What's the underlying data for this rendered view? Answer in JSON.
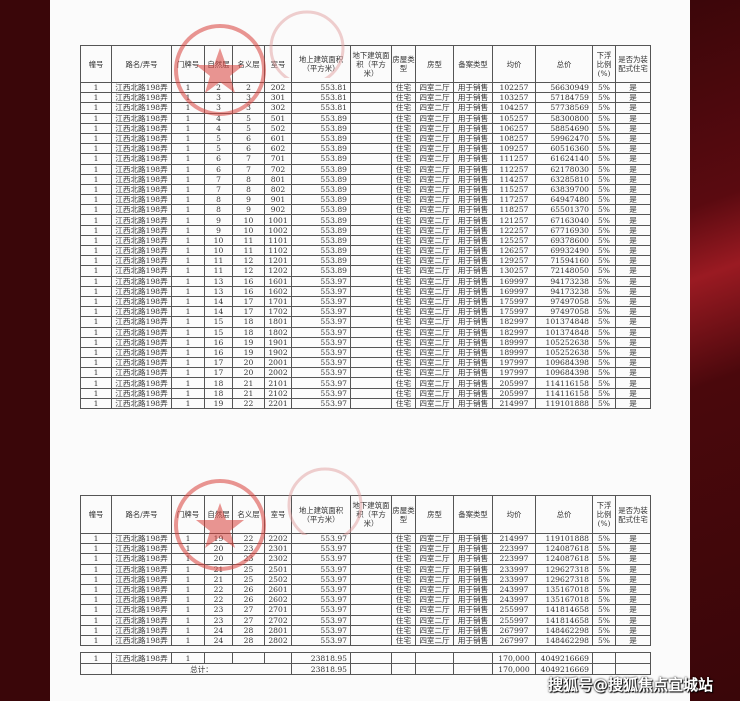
{
  "headers": [
    "幢号",
    "路名/弄号",
    "门牌号",
    "自然层",
    "名义层",
    "室号",
    "地上建筑面积（平方米）",
    "地下建筑面积（平方米）",
    "房屋类型",
    "房型",
    "备案类型",
    "均价",
    "总价",
    "下浮比例(%)",
    "是否为装配式住宅"
  ],
  "table1_rows": [
    [
      "1",
      "江西北路198弄",
      "1",
      "2",
      "2",
      "202",
      "553.81",
      "",
      "住宅",
      "四室二厅",
      "用于销售",
      "102257",
      "56630949",
      "5%",
      "是"
    ],
    [
      "1",
      "江西北路198弄",
      "1",
      "3",
      "3",
      "301",
      "553.81",
      "",
      "住宅",
      "四室二厅",
      "用于销售",
      "103257",
      "57184759",
      "5%",
      "是"
    ],
    [
      "1",
      "江西北路198弄",
      "1",
      "3",
      "3",
      "302",
      "553.81",
      "",
      "住宅",
      "四室二厅",
      "用于销售",
      "104257",
      "57738569",
      "5%",
      "是"
    ],
    [
      "1",
      "江西北路198弄",
      "1",
      "4",
      "5",
      "501",
      "553.89",
      "",
      "住宅",
      "四室二厅",
      "用于销售",
      "105257",
      "58300800",
      "5%",
      "是"
    ],
    [
      "1",
      "江西北路198弄",
      "1",
      "4",
      "5",
      "502",
      "553.89",
      "",
      "住宅",
      "四室二厅",
      "用于销售",
      "106257",
      "58854690",
      "5%",
      "是"
    ],
    [
      "1",
      "江西北路198弄",
      "1",
      "5",
      "6",
      "601",
      "553.89",
      "",
      "住宅",
      "四室二厅",
      "用于销售",
      "108257",
      "59962470",
      "5%",
      "是"
    ],
    [
      "1",
      "江西北路198弄",
      "1",
      "5",
      "6",
      "602",
      "553.89",
      "",
      "住宅",
      "四室二厅",
      "用于销售",
      "109257",
      "60516360",
      "5%",
      "是"
    ],
    [
      "1",
      "江西北路198弄",
      "1",
      "6",
      "7",
      "701",
      "553.89",
      "",
      "住宅",
      "四室二厅",
      "用于销售",
      "111257",
      "61624140",
      "5%",
      "是"
    ],
    [
      "1",
      "江西北路198弄",
      "1",
      "6",
      "7",
      "702",
      "553.89",
      "",
      "住宅",
      "四室二厅",
      "用于销售",
      "112257",
      "62178030",
      "5%",
      "是"
    ],
    [
      "1",
      "江西北路198弄",
      "1",
      "7",
      "8",
      "801",
      "553.89",
      "",
      "住宅",
      "四室二厅",
      "用于销售",
      "114257",
      "63285810",
      "5%",
      "是"
    ],
    [
      "1",
      "江西北路198弄",
      "1",
      "7",
      "8",
      "802",
      "553.89",
      "",
      "住宅",
      "四室二厅",
      "用于销售",
      "115257",
      "63839700",
      "5%",
      "是"
    ],
    [
      "1",
      "江西北路198弄",
      "1",
      "8",
      "9",
      "901",
      "553.89",
      "",
      "住宅",
      "四室二厅",
      "用于销售",
      "117257",
      "64947480",
      "5%",
      "是"
    ],
    [
      "1",
      "江西北路198弄",
      "1",
      "8",
      "9",
      "902",
      "553.89",
      "",
      "住宅",
      "四室二厅",
      "用于销售",
      "118257",
      "65501370",
      "5%",
      "是"
    ],
    [
      "1",
      "江西北路198弄",
      "1",
      "9",
      "10",
      "1001",
      "553.89",
      "",
      "住宅",
      "四室二厅",
      "用于销售",
      "121257",
      "67163040",
      "5%",
      "是"
    ],
    [
      "1",
      "江西北路198弄",
      "1",
      "9",
      "10",
      "1002",
      "553.89",
      "",
      "住宅",
      "四室二厅",
      "用于销售",
      "122257",
      "67716930",
      "5%",
      "是"
    ],
    [
      "1",
      "江西北路198弄",
      "1",
      "10",
      "11",
      "1101",
      "553.89",
      "",
      "住宅",
      "四室二厅",
      "用于销售",
      "125257",
      "69378600",
      "5%",
      "是"
    ],
    [
      "1",
      "江西北路198弄",
      "1",
      "10",
      "11",
      "1102",
      "553.89",
      "",
      "住宅",
      "四室二厅",
      "用于销售",
      "126257",
      "69932490",
      "5%",
      "是"
    ],
    [
      "1",
      "江西北路198弄",
      "1",
      "11",
      "12",
      "1201",
      "553.89",
      "",
      "住宅",
      "四室二厅",
      "用于销售",
      "129257",
      "71594160",
      "5%",
      "是"
    ],
    [
      "1",
      "江西北路198弄",
      "1",
      "11",
      "12",
      "1202",
      "553.89",
      "",
      "住宅",
      "四室二厅",
      "用于销售",
      "130257",
      "72148050",
      "5%",
      "是"
    ],
    [
      "1",
      "江西北路198弄",
      "1",
      "13",
      "16",
      "1601",
      "553.97",
      "",
      "住宅",
      "四室二厅",
      "用于销售",
      "169997",
      "94173238",
      "5%",
      "是"
    ],
    [
      "1",
      "江西北路198弄",
      "1",
      "13",
      "16",
      "1602",
      "553.97",
      "",
      "住宅",
      "四室二厅",
      "用于销售",
      "169997",
      "94173238",
      "5%",
      "是"
    ],
    [
      "1",
      "江西北路198弄",
      "1",
      "14",
      "17",
      "1701",
      "553.97",
      "",
      "住宅",
      "四室二厅",
      "用于销售",
      "175997",
      "97497058",
      "5%",
      "是"
    ],
    [
      "1",
      "江西北路198弄",
      "1",
      "14",
      "17",
      "1702",
      "553.97",
      "",
      "住宅",
      "四室二厅",
      "用于销售",
      "175997",
      "97497058",
      "5%",
      "是"
    ],
    [
      "1",
      "江西北路198弄",
      "1",
      "15",
      "18",
      "1801",
      "553.97",
      "",
      "住宅",
      "四室二厅",
      "用于销售",
      "182997",
      "101374848",
      "5%",
      "是"
    ],
    [
      "1",
      "江西北路198弄",
      "1",
      "15",
      "18",
      "1802",
      "553.97",
      "",
      "住宅",
      "四室二厅",
      "用于销售",
      "182997",
      "101374848",
      "5%",
      "是"
    ],
    [
      "1",
      "江西北路198弄",
      "1",
      "16",
      "19",
      "1901",
      "553.97",
      "",
      "住宅",
      "四室二厅",
      "用于销售",
      "189997",
      "105252638",
      "5%",
      "是"
    ],
    [
      "1",
      "江西北路198弄",
      "1",
      "16",
      "19",
      "1902",
      "553.97",
      "",
      "住宅",
      "四室二厅",
      "用于销售",
      "189997",
      "105252638",
      "5%",
      "是"
    ],
    [
      "1",
      "江西北路198弄",
      "1",
      "17",
      "20",
      "2001",
      "553.97",
      "",
      "住宅",
      "四室二厅",
      "用于销售",
      "197997",
      "109684398",
      "5%",
      "是"
    ],
    [
      "1",
      "江西北路198弄",
      "1",
      "17",
      "20",
      "2002",
      "553.97",
      "",
      "住宅",
      "四室二厅",
      "用于销售",
      "197997",
      "109684398",
      "5%",
      "是"
    ],
    [
      "1",
      "江西北路198弄",
      "1",
      "18",
      "21",
      "2101",
      "553.97",
      "",
      "住宅",
      "四室二厅",
      "用于销售",
      "205997",
      "114116158",
      "5%",
      "是"
    ],
    [
      "1",
      "江西北路198弄",
      "1",
      "18",
      "21",
      "2102",
      "553.97",
      "",
      "住宅",
      "四室二厅",
      "用于销售",
      "205997",
      "114116158",
      "5%",
      "是"
    ],
    [
      "1",
      "江西北路198弄",
      "1",
      "19",
      "22",
      "2201",
      "553.97",
      "",
      "住宅",
      "四室二厅",
      "用于销售",
      "214997",
      "119101888",
      "5%",
      "是"
    ]
  ],
  "table2_rows": [
    [
      "1",
      "江西北路198弄",
      "1",
      "19",
      "22",
      "2202",
      "553.97",
      "",
      "住宅",
      "四室二厅",
      "用于销售",
      "214997",
      "119101888",
      "5%",
      "是"
    ],
    [
      "1",
      "江西北路198弄",
      "1",
      "20",
      "23",
      "2301",
      "553.97",
      "",
      "住宅",
      "四室二厅",
      "用于销售",
      "223997",
      "124087618",
      "5%",
      "是"
    ],
    [
      "1",
      "江西北路198弄",
      "1",
      "20",
      "23",
      "2302",
      "553.97",
      "",
      "住宅",
      "四室二厅",
      "用于销售",
      "223997",
      "124087618",
      "5%",
      "是"
    ],
    [
      "1",
      "江西北路198弄",
      "1",
      "21",
      "25",
      "2501",
      "553.97",
      "",
      "住宅",
      "四室二厅",
      "用于销售",
      "233997",
      "129627318",
      "5%",
      "是"
    ],
    [
      "1",
      "江西北路198弄",
      "1",
      "21",
      "25",
      "2502",
      "553.97",
      "",
      "住宅",
      "四室二厅",
      "用于销售",
      "233997",
      "129627318",
      "5%",
      "是"
    ],
    [
      "1",
      "江西北路198弄",
      "1",
      "22",
      "26",
      "2601",
      "553.97",
      "",
      "住宅",
      "四室二厅",
      "用于销售",
      "243997",
      "135167018",
      "5%",
      "是"
    ],
    [
      "1",
      "江西北路198弄",
      "1",
      "22",
      "26",
      "2602",
      "553.97",
      "",
      "住宅",
      "四室二厅",
      "用于销售",
      "243997",
      "135167018",
      "5%",
      "是"
    ],
    [
      "1",
      "江西北路198弄",
      "1",
      "23",
      "27",
      "2701",
      "553.97",
      "",
      "住宅",
      "四室二厅",
      "用于销售",
      "255997",
      "141814658",
      "5%",
      "是"
    ],
    [
      "1",
      "江西北路198弄",
      "1",
      "23",
      "27",
      "2702",
      "553.97",
      "",
      "住宅",
      "四室二厅",
      "用于销售",
      "255997",
      "141814658",
      "5%",
      "是"
    ],
    [
      "1",
      "江西北路198弄",
      "1",
      "24",
      "28",
      "2801",
      "553.97",
      "",
      "住宅",
      "四室二厅",
      "用于销售",
      "267997",
      "148462298",
      "5%",
      "是"
    ],
    [
      "1",
      "江西北路198弄",
      "1",
      "24",
      "28",
      "2802",
      "553.97",
      "",
      "住宅",
      "四室二厅",
      "用于销售",
      "267997",
      "148462298",
      "5%",
      "是"
    ]
  ],
  "summary": {
    "building_row": {
      "building": "1",
      "road": "江西北路198弄",
      "door": "1",
      "area": "23818.95",
      "avg_price": "170,000",
      "total_price": "4049216669"
    },
    "total_row": {
      "label": "总计：",
      "area": "23818.95",
      "avg_price": "170,000",
      "total_price": "4049216669"
    }
  },
  "watermark": "搜狐号@搜狐焦点宜城站",
  "colors": {
    "background": "#3a0609",
    "paper": "#fbfbfb",
    "stamp": "#d9403a"
  }
}
